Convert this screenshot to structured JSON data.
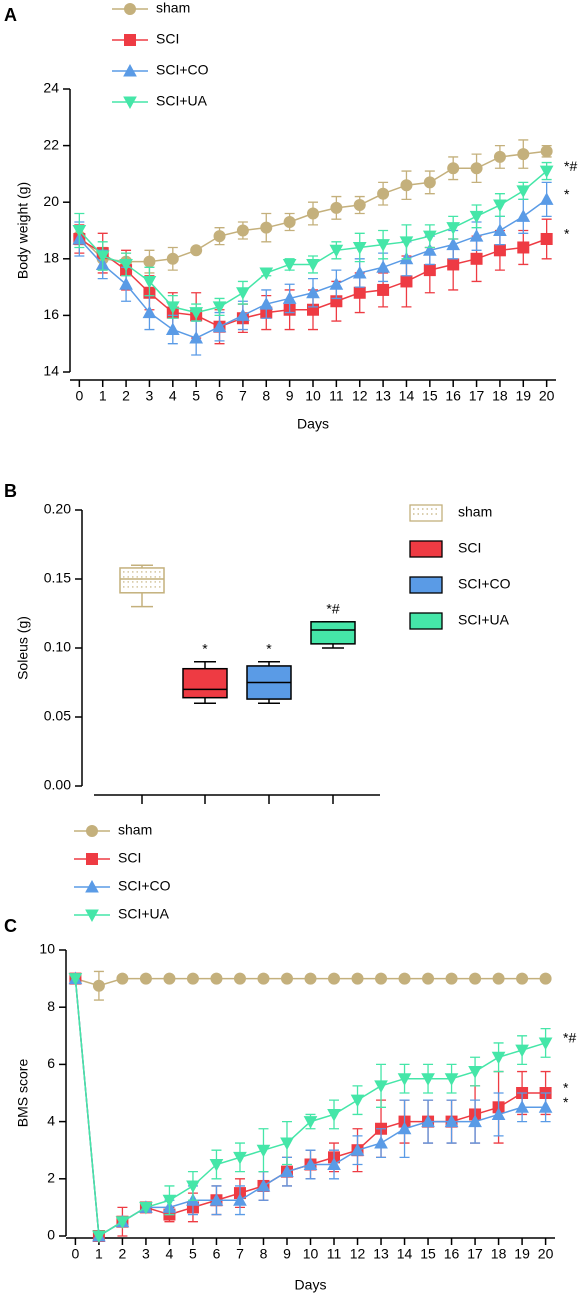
{
  "chart_data": [
    {
      "type": "line",
      "panel_label": "A",
      "y_label": "Body weight (g)",
      "x_label": "Days",
      "x": [
        0,
        1,
        2,
        3,
        4,
        5,
        6,
        7,
        8,
        9,
        10,
        11,
        12,
        13,
        14,
        15,
        16,
        17,
        18,
        19,
        20
      ],
      "xlim": [
        -0.4,
        20.4
      ],
      "xticks": [
        0,
        1,
        2,
        3,
        4,
        5,
        6,
        7,
        8,
        9,
        10,
        11,
        12,
        13,
        14,
        15,
        16,
        17,
        18,
        19,
        20
      ],
      "ylim": [
        14,
        24
      ],
      "yticks": [
        14,
        16,
        18,
        20,
        22,
        24
      ],
      "series": [
        {
          "name": "sham",
          "color": "#c4b07c",
          "marker": "circle",
          "values": [
            18.8,
            18.0,
            17.9,
            17.9,
            18.0,
            18.3,
            18.8,
            19.0,
            19.1,
            19.3,
            19.6,
            19.8,
            19.9,
            20.3,
            20.6,
            20.7,
            21.2,
            21.2,
            21.6,
            21.7,
            21.8
          ],
          "errors": [
            0.3,
            0.4,
            0.3,
            0.4,
            0.4,
            0.1,
            0.3,
            0.3,
            0.5,
            0.3,
            0.4,
            0.4,
            0.3,
            0.4,
            0.5,
            0.4,
            0.4,
            0.5,
            0.4,
            0.5,
            0.2
          ]
        },
        {
          "name": "SCI",
          "color": "#ee3b43",
          "marker": "square",
          "annotation": "*",
          "values": [
            18.7,
            18.2,
            17.6,
            16.8,
            16.1,
            16.0,
            15.6,
            15.9,
            16.1,
            16.2,
            16.2,
            16.5,
            16.8,
            16.9,
            17.2,
            17.6,
            17.8,
            18.0,
            18.3,
            18.4,
            18.7
          ],
          "errors": [
            0.5,
            0.7,
            0.7,
            0.6,
            0.7,
            0.8,
            0.6,
            0.5,
            0.6,
            0.7,
            0.7,
            0.7,
            0.7,
            0.6,
            0.9,
            0.8,
            0.9,
            0.8,
            0.7,
            0.6,
            0.7
          ]
        },
        {
          "name": "SCI+CO",
          "color": "#5a9be6",
          "marker": "triangle-up",
          "annotation": "*",
          "values": [
            18.7,
            17.8,
            17.1,
            16.1,
            15.5,
            15.2,
            15.6,
            16.0,
            16.4,
            16.6,
            16.8,
            17.1,
            17.5,
            17.7,
            18.0,
            18.3,
            18.5,
            18.8,
            19.0,
            19.5,
            20.1
          ],
          "errors": [
            0.6,
            0.5,
            0.6,
            0.6,
            0.5,
            0.6,
            0.5,
            0.5,
            0.5,
            0.5,
            0.5,
            0.5,
            0.5,
            0.5,
            0.6,
            0.5,
            0.5,
            0.5,
            0.5,
            0.6,
            0.6
          ]
        },
        {
          "name": "SCI+UA",
          "color": "#45e6a8",
          "marker": "triangle-down",
          "annotation": "*#",
          "values": [
            19.0,
            18.1,
            17.8,
            17.2,
            16.3,
            16.1,
            16.3,
            16.8,
            17.5,
            17.8,
            17.8,
            18.3,
            18.4,
            18.5,
            18.6,
            18.8,
            19.1,
            19.5,
            19.9,
            20.4,
            21.1
          ],
          "errors": [
            0.6,
            0.5,
            0.4,
            0.5,
            0.4,
            0.3,
            0.3,
            0.4,
            0.1,
            0.2,
            0.3,
            0.3,
            0.5,
            0.5,
            0.6,
            0.4,
            0.4,
            0.4,
            0.4,
            0.3,
            0.3
          ]
        }
      ]
    },
    {
      "type": "box",
      "panel_label": "B",
      "y_label": "Soleus (g)",
      "ylim": [
        0,
        0.2
      ],
      "yticks": [
        {
          "value": 0,
          "label": "0.00"
        },
        0.05,
        {
          "value": 0.1,
          "label": "0.10"
        },
        0.15,
        {
          "value": 0.2,
          "label": "0.20"
        }
      ],
      "series": [
        {
          "name": "sham",
          "color": "#c4b07c",
          "pattern": "dotted",
          "min": 0.13,
          "q1": 0.14,
          "median": 0.15,
          "q3": 0.158,
          "max": 0.16
        },
        {
          "name": "SCI",
          "color": "#ee3b43",
          "min": 0.06,
          "q1": 0.064,
          "median": 0.07,
          "q3": 0.085,
          "max": 0.09,
          "annotation": "*"
        },
        {
          "name": "SCI+CO",
          "color": "#5a9be6",
          "min": 0.06,
          "q1": 0.063,
          "median": 0.075,
          "q3": 0.087,
          "max": 0.09,
          "annotation": "*"
        },
        {
          "name": "SCI+UA",
          "color": "#45e6a8",
          "min": 0.1,
          "q1": 0.103,
          "median": 0.113,
          "q3": 0.119,
          "max": 0.119,
          "annotation": "*#"
        }
      ]
    },
    {
      "type": "line",
      "panel_label": "C",
      "y_label": "BMS score",
      "x_label": "Days",
      "x": [
        0,
        1,
        2,
        3,
        4,
        5,
        6,
        7,
        8,
        9,
        10,
        11,
        12,
        13,
        14,
        15,
        16,
        17,
        18,
        19,
        20
      ],
      "xlim": [
        -0.4,
        20.4
      ],
      "xticks": [
        0,
        1,
        2,
        3,
        4,
        5,
        6,
        7,
        8,
        9,
        10,
        11,
        12,
        13,
        14,
        15,
        16,
        17,
        18,
        19,
        20
      ],
      "ylim": [
        0,
        10
      ],
      "yticks": [
        0,
        2,
        4,
        6,
        8,
        10
      ],
      "series": [
        {
          "name": "sham",
          "color": "#c4b07c",
          "marker": "circle",
          "values": [
            9,
            8.75,
            9,
            9,
            9,
            9,
            9,
            9,
            9,
            9,
            9,
            9,
            9,
            9,
            9,
            9,
            9,
            9,
            9,
            9,
            9
          ],
          "errors": [
            0,
            0.5,
            0,
            0,
            0,
            0,
            0,
            0,
            0,
            0,
            0,
            0,
            0,
            0,
            0,
            0,
            0,
            0,
            0,
            0,
            0
          ]
        },
        {
          "name": "SCI",
          "color": "#ee3b43",
          "marker": "square",
          "annotation": "*",
          "values": [
            9,
            0,
            0.5,
            1,
            0.75,
            1,
            1.25,
            1.5,
            1.75,
            2.25,
            2.5,
            2.75,
            3,
            3.75,
            4,
            4,
            4,
            4.25,
            4.5,
            5,
            5
          ],
          "errors": [
            0,
            0,
            0.5,
            0,
            0.25,
            0.5,
            0.5,
            0.5,
            0.5,
            0.5,
            0.5,
            0.5,
            0.75,
            1,
            0.75,
            0.75,
            0.75,
            1,
            1.25,
            0.75,
            0.75
          ]
        },
        {
          "name": "SCI+CO",
          "color": "#5a9be6",
          "marker": "triangle-up",
          "annotation": "*",
          "values": [
            9,
            0,
            0.5,
            1,
            1,
            1.25,
            1.25,
            1.25,
            1.75,
            2.25,
            2.5,
            2.5,
            3,
            3.25,
            3.75,
            4,
            4,
            4,
            4.25,
            4.5,
            4.5
          ],
          "errors": [
            0,
            0,
            0,
            0,
            0.25,
            0.5,
            0.5,
            0.5,
            0.5,
            0.5,
            0.5,
            0.5,
            0.5,
            0.5,
            1,
            0.75,
            0.75,
            0.75,
            0.75,
            0.5,
            0.5
          ]
        },
        {
          "name": "SCI+UA",
          "color": "#45e6a8",
          "marker": "triangle-down",
          "annotation": "*#",
          "values": [
            9,
            0,
            0.5,
            1,
            1.25,
            1.75,
            2.5,
            2.75,
            3,
            3.25,
            4,
            4.25,
            4.75,
            5.25,
            5.5,
            5.5,
            5.5,
            5.75,
            6.25,
            6.5,
            6.75
          ],
          "errors": [
            0,
            0,
            0,
            0,
            0.5,
            0.5,
            0.5,
            0.5,
            0.75,
            0.75,
            0.25,
            0.5,
            0.5,
            0.75,
            0.5,
            0.5,
            0.5,
            0.5,
            0.5,
            0.5,
            0.5
          ]
        }
      ]
    }
  ]
}
